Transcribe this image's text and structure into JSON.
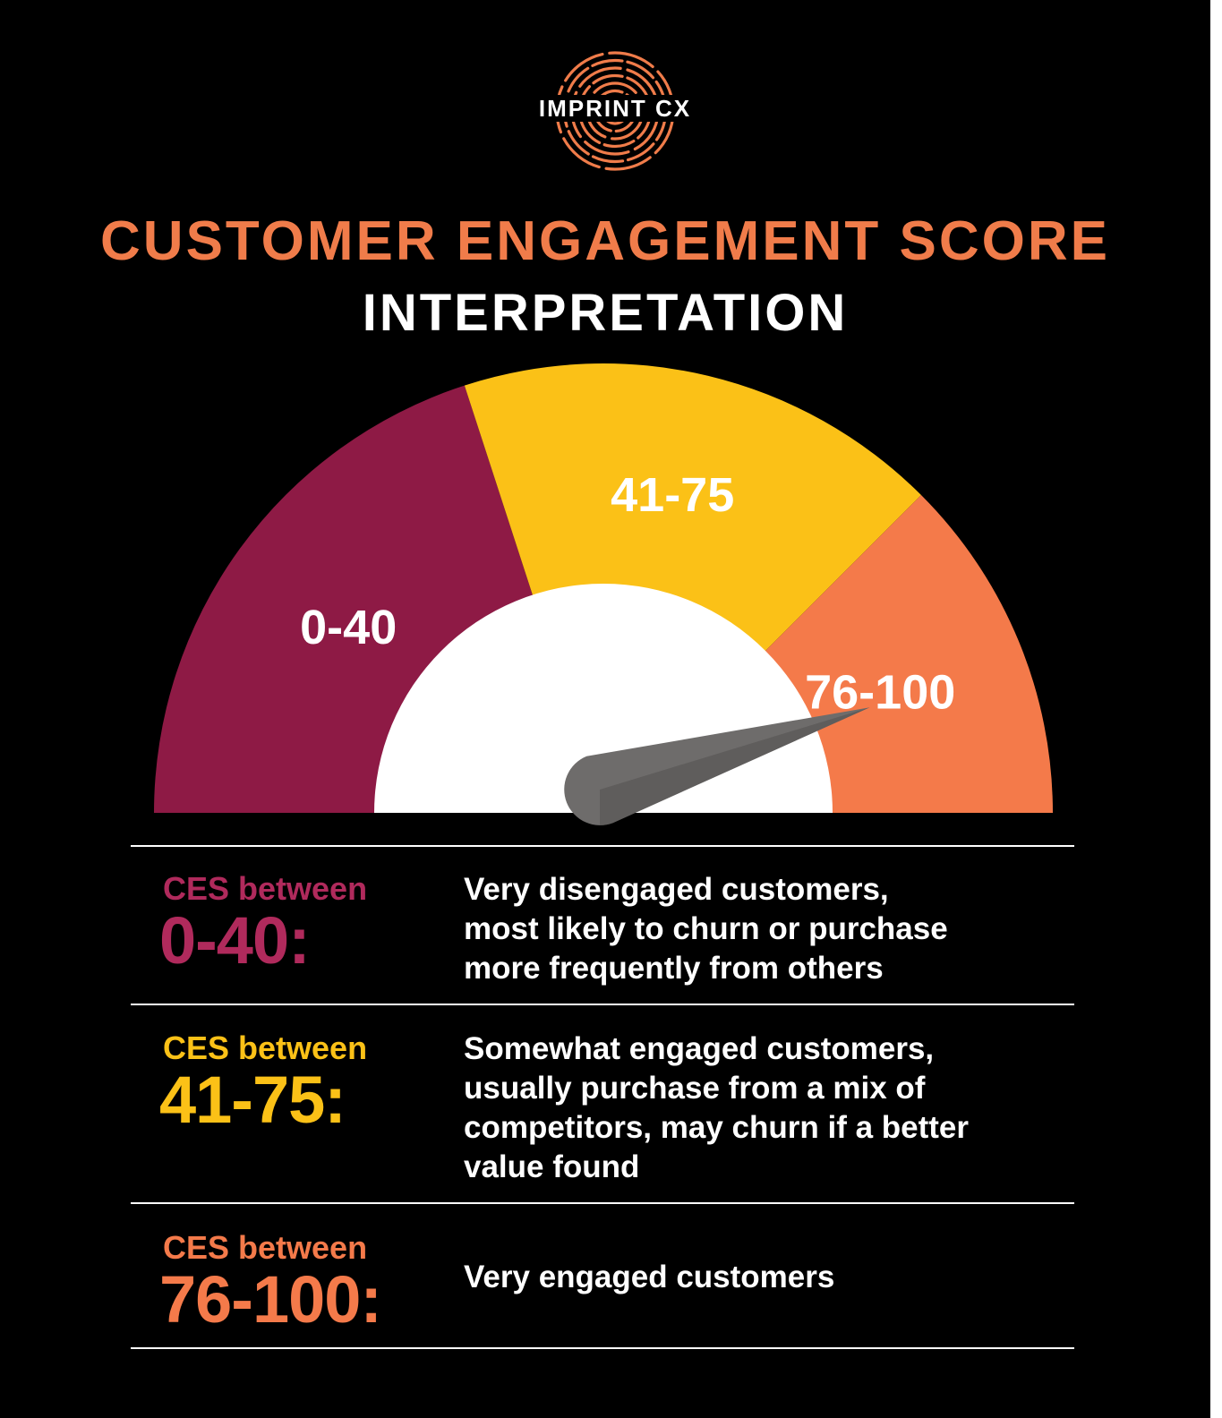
{
  "brand": {
    "name": "IMPRINT CX",
    "icon": "fingerprint-icon",
    "color": "#f07c4a"
  },
  "header": {
    "title": "CUSTOMER ENGAGEMENT SCORE",
    "subtitle": "INTERPRETATION"
  },
  "gauge": {
    "scale_min": 0,
    "scale_max": 100,
    "needle_value": 88,
    "segments": [
      {
        "label": "0-40",
        "from": 0,
        "to": 40,
        "color": "#8e1a45"
      },
      {
        "label": "41-75",
        "from": 40,
        "to": 75,
        "color": "#fbc117"
      },
      {
        "label": "76-100",
        "from": 75,
        "to": 100,
        "color": "#f47a4a"
      }
    ],
    "needle_color": "#6e6c6b",
    "center_color": "#ffffff"
  },
  "interpretations": [
    {
      "prefix": "CES between",
      "range": "0-40:",
      "color": "#b02a5c",
      "lines": [
        "Very disengaged customers,",
        "most likely to churn or purchase",
        "more frequently from others"
      ]
    },
    {
      "prefix": "CES between",
      "range": "41-75:",
      "color": "#fbc117",
      "lines": [
        "Somewhat engaged customers,",
        "usually purchase from a mix of",
        "competitors, may churn if a better",
        "value found"
      ]
    },
    {
      "prefix": "CES between",
      "range": "76-100:",
      "color": "#f47a4a",
      "lines": [
        "Very engaged customers"
      ]
    }
  ]
}
